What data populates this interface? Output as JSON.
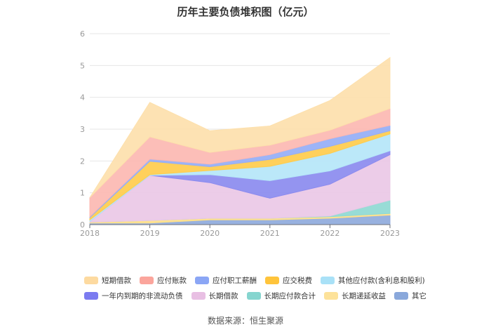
{
  "chart_data": {
    "type": "area",
    "title": "历年主要负债堆积图（亿元）",
    "source": "数据来源：恒生聚源",
    "categories": [
      "2018",
      "2019",
      "2020",
      "2021",
      "2022",
      "2023"
    ],
    "ylim": [
      0,
      6
    ],
    "yticks": [
      "0",
      "1",
      "2",
      "3",
      "4",
      "5",
      "6"
    ],
    "stacked": true,
    "grid": true,
    "legend_position": "bottom",
    "series": [
      {
        "name": "其它",
        "color": "#8faadc",
        "values": [
          0.05,
          0.05,
          0.15,
          0.15,
          0.2,
          0.3
        ]
      },
      {
        "name": "长期递延收益",
        "color": "#ffe08a",
        "values": [
          0.03,
          0.08,
          0.05,
          0.05,
          0.05,
          0.05
        ]
      },
      {
        "name": "长期应付款合计",
        "color": "#8fd9d3",
        "values": [
          0.0,
          0.0,
          0.0,
          0.0,
          0.02,
          0.42
        ]
      },
      {
        "name": "长期借款",
        "color": "#eac8e6",
        "values": [
          0.02,
          1.42,
          1.12,
          0.63,
          1.0,
          1.43
        ]
      },
      {
        "name": "一年内到期的非流动负债",
        "color": "#8b8bef",
        "values": [
          0.0,
          0.0,
          0.25,
          0.55,
          0.42,
          0.12
        ]
      },
      {
        "name": "其他应付款(含利息和股利)",
        "color": "#b5e6f8",
        "values": [
          0.05,
          0.02,
          0.13,
          0.45,
          0.55,
          0.53
        ]
      },
      {
        "name": "应交税费",
        "color": "#ffcc4d",
        "values": [
          0.07,
          0.42,
          0.12,
          0.22,
          0.22,
          0.1
        ]
      },
      {
        "name": "应付职工薪酬",
        "color": "#95aef6",
        "values": [
          0.03,
          0.07,
          0.08,
          0.15,
          0.24,
          0.17
        ]
      },
      {
        "name": "应付账款",
        "color": "#fcb8b2",
        "values": [
          0.6,
          0.7,
          0.37,
          0.3,
          0.27,
          0.53
        ]
      },
      {
        "name": "短期借款",
        "color": "#fde0ac",
        "values": [
          0.0,
          1.08,
          0.68,
          0.6,
          0.93,
          1.6
        ]
      }
    ]
  },
  "legend_rows": [
    [
      {
        "label": "短期借款",
        "color": "#fddaa0"
      },
      {
        "label": "应付账款",
        "color": "#fba59c"
      },
      {
        "label": "应付职工薪酬",
        "color": "#8ba6f5"
      },
      {
        "label": "应交税费",
        "color": "#ffc43b"
      },
      {
        "label": "其他应付款(含利息和股利)",
        "color": "#a9e1f7"
      }
    ],
    [
      {
        "label": "一年内到期的非流动负债",
        "color": "#7b7bf0"
      },
      {
        "label": "长期借款",
        "color": "#e8bfe3"
      },
      {
        "label": "长期应付款合计",
        "color": "#86d5cf"
      },
      {
        "label": "长期递延收益",
        "color": "#fde29a"
      },
      {
        "label": "其它",
        "color": "#8aa8db"
      }
    ]
  ]
}
